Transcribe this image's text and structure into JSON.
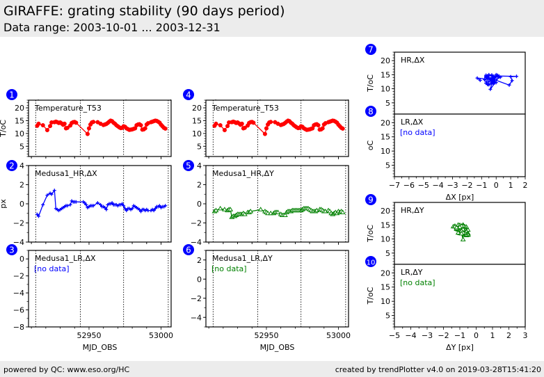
{
  "header": {
    "title": "GIRAFFE: grating stability (90 days period)",
    "subtitle": "Data range: 2003-10-01 ... 2003-12-31"
  },
  "footer": {
    "left": "powered by QC: www.eso.org/HC",
    "right": "created by trendPlotter v4.0 on 2019-03-28T15:41:20"
  },
  "colors": {
    "temperature": "#ff0000",
    "delta_x": "#0000ff",
    "delta_y": "#008000",
    "badge": "#0000ff",
    "no_data_x": "#0000ff",
    "no_data_y": "#008000"
  },
  "date_markers": [
    {
      "label": "2003-10-01",
      "mjd": 52913
    },
    {
      "label": "2003-11-01",
      "mjd": 52944
    },
    {
      "label": "2003-12-01",
      "mjd": 52974
    },
    {
      "label": "2004-01-01",
      "mjd": 53005
    }
  ],
  "chart_data": [
    {
      "id": 1,
      "type": "line",
      "column": "left",
      "label": "Temperature_T53",
      "ylabel": "T/oC",
      "xlabel": "",
      "ylim": [
        1,
        23
      ],
      "yticks": [
        5,
        10,
        15,
        20
      ],
      "xlim": [
        52908,
        53007
      ],
      "xticks": [],
      "color_key": "temperature",
      "marker": "circle",
      "series": [
        {
          "name": "Temperature_T53",
          "x": [
            52914,
            52915,
            52918,
            52921,
            52923,
            52924,
            52926,
            52927,
            52928,
            52929,
            52930,
            52931,
            52932,
            52933,
            52934,
            52935,
            52937,
            52938,
            52939,
            52940,
            52941,
            52949,
            52950,
            52951,
            52952,
            52953,
            52956,
            52958,
            52960,
            52961,
            52962,
            52963,
            52964,
            52965,
            52966,
            52967,
            52968,
            52969,
            52970,
            52971,
            52972,
            52973,
            52974,
            52975,
            52976,
            52977,
            52978,
            52979,
            52980,
            52981,
            52982,
            52983,
            52984,
            52985,
            52986,
            52987,
            52988,
            52989,
            52990,
            52991,
            52993,
            52994,
            52995,
            52996,
            52997,
            52998,
            52999,
            53000,
            53001,
            53002,
            53003
          ],
          "y": [
            13.0,
            13.8,
            13.2,
            11.3,
            12.9,
            14.3,
            14.4,
            14.6,
            14.4,
            14.1,
            14.3,
            13.9,
            13.4,
            13.8,
            12.0,
            12.2,
            13.1,
            14.1,
            14.4,
            14.5,
            14.2,
            9.8,
            12.0,
            13.5,
            14.3,
            14.5,
            14.4,
            13.8,
            13.3,
            13.5,
            13.7,
            14.1,
            14.6,
            15.0,
            14.8,
            14.2,
            13.8,
            13.2,
            12.8,
            12.4,
            12.1,
            12.2,
            12.8,
            12.6,
            12.0,
            11.7,
            11.4,
            11.5,
            11.6,
            11.8,
            12.0,
            13.2,
            13.5,
            13.6,
            13.2,
            11.5,
            11.6,
            12.0,
            13.5,
            14.0,
            14.4,
            14.6,
            14.8,
            15.0,
            14.9,
            14.6,
            14.2,
            13.4,
            12.8,
            12.2,
            11.9
          ]
        }
      ]
    },
    {
      "id": 2,
      "type": "line",
      "column": "left",
      "label": "Medusa1_HR,ΔX",
      "ylabel": "px",
      "xlabel": "",
      "ylim": [
        -4,
        4
      ],
      "yticks": [
        -4,
        -2,
        0,
        2,
        4
      ],
      "xlim": [
        52908,
        53007
      ],
      "xticks": [],
      "color_key": "delta_x",
      "marker": "plus",
      "series": [
        {
          "name": "Medusa1_HR,ΔX",
          "x": [
            52914,
            52915,
            52918,
            52921,
            52923,
            52924,
            52926,
            52927,
            52928,
            52929,
            52930,
            52931,
            52932,
            52933,
            52934,
            52935,
            52937,
            52938,
            52939,
            52940,
            52941,
            52946,
            52947,
            52948,
            52949,
            52950,
            52951,
            52952,
            52953,
            52956,
            52958,
            52959,
            52960,
            52961,
            52962,
            52963,
            52964,
            52965,
            52966,
            52967,
            52968,
            52969,
            52970,
            52971,
            52972,
            52973,
            52974,
            52975,
            52976,
            52977,
            52978,
            52979,
            52980,
            52981,
            52982,
            52983,
            52984,
            52985,
            52986,
            52987,
            52988,
            52989,
            52990,
            52991,
            52993,
            52994,
            52995,
            52996,
            52997,
            52998,
            52999,
            53000,
            53001,
            53002,
            53003
          ],
          "y": [
            -1.1,
            -1.3,
            -0.1,
            0.9,
            1.1,
            1.0,
            1.4,
            -0.5,
            -0.6,
            -0.7,
            -0.6,
            -0.5,
            -0.4,
            -0.3,
            -0.2,
            -0.2,
            -0.1,
            0.3,
            0.2,
            0.2,
            0.2,
            0.2,
            0.1,
            -0.1,
            -0.4,
            -0.3,
            -0.2,
            -0.2,
            -0.2,
            0.1,
            -0.1,
            -0.3,
            -0.3,
            -0.4,
            -0.6,
            -0.1,
            0.0,
            0.0,
            0.1,
            -0.1,
            -0.1,
            -0.1,
            -0.2,
            -0.1,
            -0.1,
            0.0,
            -0.2,
            -0.5,
            -0.7,
            -0.5,
            -0.5,
            -0.6,
            -0.5,
            -0.2,
            -0.3,
            -0.4,
            -0.5,
            -0.6,
            -0.8,
            -0.6,
            -0.6,
            -0.7,
            -0.6,
            -0.7,
            -0.7,
            -0.6,
            -0.7,
            -0.5,
            -0.3,
            -0.3,
            -0.2,
            -0.4,
            -0.3,
            -0.3,
            -0.2
          ]
        }
      ]
    },
    {
      "id": 3,
      "type": "line",
      "column": "left",
      "label": "Medusa1_LR,ΔX",
      "ylabel": "",
      "xlabel": "MJD_OBS",
      "ylim": [
        -8,
        1
      ],
      "yticks": [
        -8,
        -6,
        -4,
        -2,
        0
      ],
      "xlim": [
        52908,
        53007
      ],
      "xticks": [
        52950,
        53000
      ],
      "color_key": "delta_x",
      "no_data": "[no data]",
      "series": []
    },
    {
      "id": 4,
      "type": "line",
      "column": "middle",
      "label": "Temperature_T53",
      "ylabel": "",
      "xlabel": "",
      "ylim": [
        1,
        23
      ],
      "yticks": [
        5,
        10,
        15,
        20
      ],
      "xlim": [
        52908,
        53007
      ],
      "xticks": [],
      "color_key": "temperature",
      "marker": "circle",
      "series_ref": 1
    },
    {
      "id": 5,
      "type": "line",
      "column": "middle",
      "label": "Medusa1_HR,ΔY",
      "ylabel": "",
      "xlabel": "",
      "ylim": [
        -4,
        4
      ],
      "yticks": [
        -4,
        -2,
        0,
        2,
        4
      ],
      "xlim": [
        52908,
        53007
      ],
      "xticks": [],
      "color_key": "delta_y",
      "marker": "triangle",
      "series": [
        {
          "name": "Medusa1_HR,ΔY",
          "x": [
            52914,
            52915,
            52918,
            52921,
            52923,
            52924,
            52925,
            52926,
            52927,
            52928,
            52929,
            52930,
            52931,
            52932,
            52933,
            52934,
            52935,
            52937,
            52938,
            52939,
            52946,
            52949,
            52950,
            52951,
            52953,
            52955,
            52956,
            52957,
            52958,
            52960,
            52961,
            52962,
            52963,
            52964,
            52965,
            52966,
            52967,
            52968,
            52969,
            52970,
            52971,
            52972,
            52973,
            52974,
            52975,
            52976,
            52977,
            52978,
            52979,
            52980,
            52981,
            52982,
            52983,
            52984,
            52985,
            52987,
            52988,
            52989,
            52990,
            52991,
            52993,
            52994,
            52995,
            52996,
            52997,
            52998,
            52999,
            53000,
            53001,
            53002,
            53003
          ],
          "y": [
            -0.8,
            -0.7,
            -0.5,
            -0.6,
            -0.7,
            -0.6,
            -0.6,
            -1.4,
            -1.3,
            -1.3,
            -1.2,
            -1.1,
            -1.1,
            -1.1,
            -1.1,
            -1.0,
            -1.1,
            -0.9,
            -0.9,
            -0.8,
            -0.6,
            -0.8,
            -0.9,
            -1.0,
            -1.0,
            -1.0,
            -0.9,
            -0.9,
            -0.9,
            -1.1,
            -1.2,
            -1.2,
            -1.2,
            -0.9,
            -0.8,
            -0.8,
            -0.8,
            -0.7,
            -0.7,
            -0.7,
            -0.7,
            -0.7,
            -0.7,
            -0.7,
            -0.6,
            -0.5,
            -0.5,
            -0.5,
            -0.5,
            -0.6,
            -0.7,
            -0.8,
            -0.8,
            -0.8,
            -0.7,
            -0.6,
            -0.6,
            -0.7,
            -0.8,
            -0.8,
            -0.7,
            -0.8,
            -1.0,
            -1.1,
            -1.0,
            -0.9,
            -1.0,
            -0.8,
            -0.9,
            -0.8,
            -0.9
          ]
        }
      ]
    },
    {
      "id": 6,
      "type": "line",
      "column": "middle",
      "label": "Medusa1_LR,ΔY",
      "ylabel": "",
      "xlabel": "MJD_OBS",
      "ylim": [
        -5,
        3
      ],
      "yticks": [
        -4,
        -2,
        0,
        2
      ],
      "xlim": [
        52908,
        53007
      ],
      "xticks": [
        52950,
        53000
      ],
      "color_key": "delta_y",
      "no_data": "[no data]",
      "series": []
    },
    {
      "id": 7,
      "type": "scatter",
      "column": "right",
      "label": "HR,ΔX",
      "ylabel": "T/oC",
      "xlabel": "",
      "xlim": [
        -7,
        2
      ],
      "ylim": [
        1,
        23
      ],
      "yticks": [
        5,
        10,
        15,
        20
      ],
      "xticks": [],
      "color_key": "delta_x",
      "marker": "plus",
      "series_from": {
        "x": 2,
        "y": 1
      }
    },
    {
      "id": 8,
      "type": "scatter",
      "column": "right",
      "label": "LR,ΔX",
      "ylabel": "oC",
      "xlabel": "ΔX [px]",
      "xlim": [
        -7,
        2
      ],
      "ylim": [
        1,
        23
      ],
      "yticks": [
        5,
        10,
        15,
        20
      ],
      "xticks": [
        -7,
        -6,
        -5,
        -4,
        -3,
        -2,
        -1,
        0,
        1,
        2
      ],
      "xtick_labels": [
        "−7",
        "−6",
        "−5",
        "−4",
        "−3",
        "−2",
        "−1",
        "0",
        "1",
        "2"
      ],
      "color_key": "delta_x",
      "no_data": "[no data]"
    },
    {
      "id": 9,
      "type": "scatter",
      "column": "right",
      "label": "HR,ΔY",
      "ylabel": "T/oC",
      "xlabel": "",
      "xlim": [
        -5,
        3
      ],
      "ylim": [
        1,
        23
      ],
      "yticks": [
        5,
        10,
        15,
        20
      ],
      "xticks": [],
      "color_key": "delta_y",
      "marker": "triangle",
      "series_from": {
        "x": 5,
        "y": 1
      }
    },
    {
      "id": 10,
      "type": "scatter",
      "column": "right",
      "label": "LR,ΔY",
      "ylabel": "T/oC",
      "xlabel": "ΔY [px]",
      "xlim": [
        -5,
        3
      ],
      "ylim": [
        1,
        23
      ],
      "yticks": [
        5,
        10,
        15,
        20
      ],
      "xticks": [
        -5,
        -4,
        -3,
        -2,
        -1,
        0,
        1,
        2,
        3
      ],
      "xtick_labels": [
        "−5",
        "−4",
        "−3",
        "−2",
        "−1",
        "0",
        "1",
        "2",
        "3"
      ],
      "color_key": "delta_y",
      "no_data": "[no data]"
    }
  ],
  "tick_labels_50k": [
    "52950",
    "53000"
  ]
}
